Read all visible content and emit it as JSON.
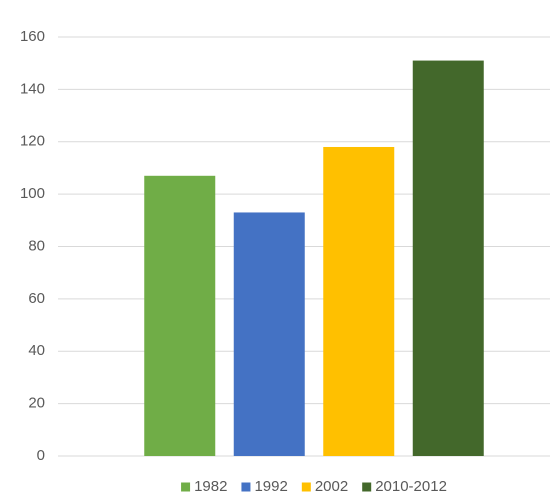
{
  "chart_data": {
    "type": "bar",
    "categories": [
      null
    ],
    "series": [
      {
        "name": "1982",
        "color": "#70ad47",
        "values": [
          107
        ]
      },
      {
        "name": "1992",
        "color": "#4472c4",
        "values": [
          93
        ]
      },
      {
        "name": "2002",
        "color": "#ffc000",
        "values": [
          118
        ]
      },
      {
        "name": "2010-2012",
        "color": "#43682b",
        "values": [
          151
        ]
      }
    ],
    "ylim": [
      0,
      160
    ],
    "yticks": [
      0,
      20,
      40,
      60,
      80,
      100,
      120,
      140,
      160
    ],
    "grid": true,
    "legend": "bottom"
  }
}
